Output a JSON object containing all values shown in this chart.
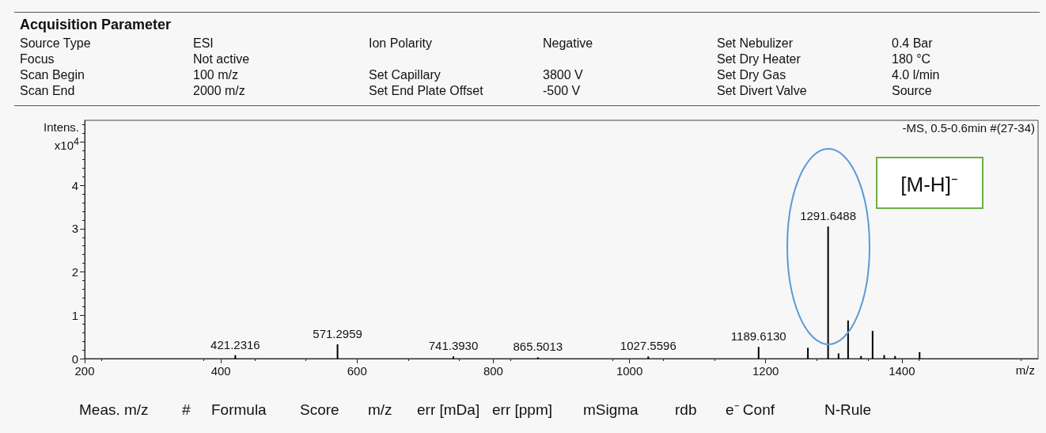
{
  "chart_data": {
    "type": "bar",
    "title": "Acquisition Parameter",
    "subtitle": "-MS, 0.5-0.6min #(27-34)",
    "xlabel": "m/z",
    "ylabel": "Intens.\nx10$^{4}$",
    "x": [
      421.2316,
      571.2959,
      741.393,
      865.5013,
      1027.5596,
      1189.613,
      1262,
      1291.6488,
      1307,
      1321,
      1340,
      1357,
      1374,
      1390,
      1426
    ],
    "values": [
      0.08,
      0.33,
      0.05,
      0.03,
      0.05,
      0.27,
      0.25,
      3.05,
      0.12,
      0.88,
      0.06,
      0.64,
      0.08,
      0.06,
      0.15
    ],
    "color": "#000000",
    "xlim": [
      200,
      1600
    ],
    "xticks": [
      200,
      400,
      600,
      800,
      1000,
      1200,
      1400
    ],
    "ylim": [
      0,
      5.5
    ],
    "yticks": [
      0,
      1,
      2,
      3,
      4,
      {
        "value": 5,
        "label": null
      }
    ],
    "grid": false,
    "annotations": [
      "Source Type",
      "ESI",
      "Ion Polarity",
      "Negative",
      "Set Nebulizer",
      "0.4 Bar",
      "Focus",
      "Not active",
      "Set Dry Heater",
      "180 °C",
      "Scan Begin",
      "100 m/z",
      "Set Capillary",
      "3800 V",
      "Set Dry Gas",
      "4.0 l/min",
      "Scan End",
      "2000 m/z",
      "Set End Plate Offset",
      "-500 V",
      "Set Divert Valve",
      "Source",
      "Meas. m/z",
      "#",
      "Formula",
      "Score",
      "m/z",
      "err [mDa]",
      "err [ppm]",
      "mSigma",
      "rdb",
      "e⁻ Conf",
      "N-Rule",
      "[M-H]⁻",
      {
        "text": "421.2316",
        "x": 421.2316,
        "y": 0.08
      },
      {
        "text": "571.2959",
        "x": 571.2959,
        "y": 0.33
      },
      {
        "text": "741.3930",
        "x": 741.393,
        "y": 0.05
      },
      {
        "text": "865.5013",
        "x": 865.5013,
        "y": 0.03
      },
      {
        "text": "1027.5596",
        "x": 1027.5596,
        "y": 0.05
      },
      {
        "text": "1189.6130",
        "x": 1189.613,
        "y": 0.27
      },
      {
        "text": "1291.6488",
        "x": 1291.6488,
        "y": 3.05
      }
    ]
  }
}
